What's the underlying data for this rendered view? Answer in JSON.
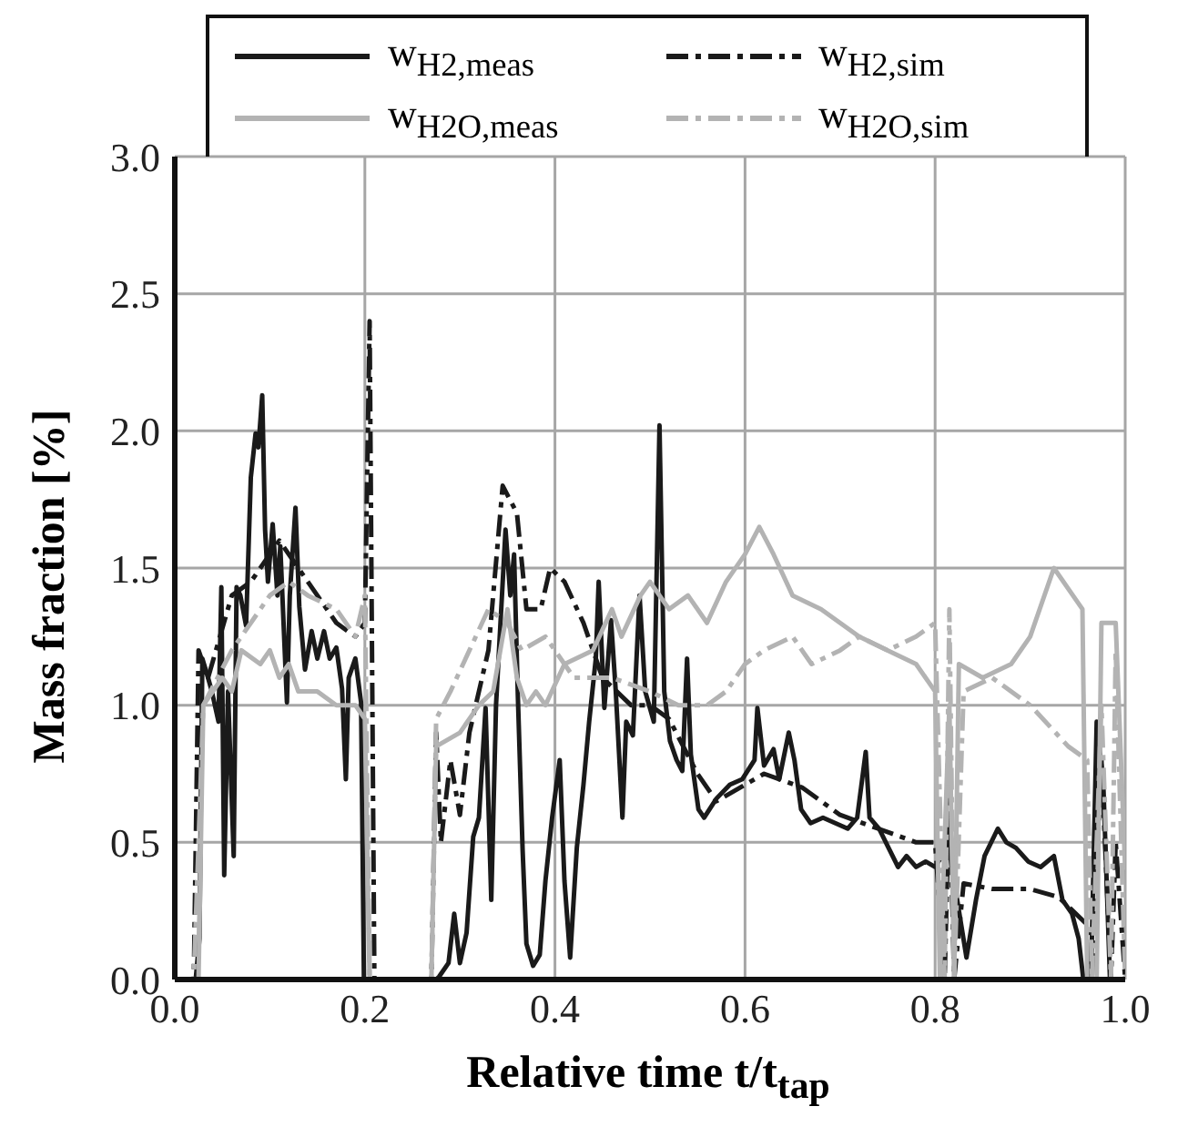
{
  "chart_data": {
    "type": "line",
    "xlabel": "Relative time t/t$_{tap}$",
    "ylabel": "Mass fraction [%]",
    "xlim": [
      0,
      1
    ],
    "ylim": [
      0,
      3
    ],
    "xticks": [
      {
        "value": 0,
        "label": "0.0"
      },
      {
        "value": 0.2,
        "label": "0.2"
      },
      {
        "value": 0.4,
        "label": "0.4"
      },
      {
        "value": 0.6,
        "label": "0.6"
      },
      {
        "value": 0.8,
        "label": "0.8"
      },
      {
        "value": 1,
        "label": "1.0"
      }
    ],
    "yticks": [
      {
        "value": 0,
        "label": "0.0"
      },
      {
        "value": 0.5,
        "label": "0.5"
      },
      {
        "value": 1,
        "label": "1.0"
      },
      {
        "value": 1.5,
        "label": "1.5"
      },
      {
        "value": 2,
        "label": "2.0"
      },
      {
        "value": 2.5,
        "label": "2.5"
      },
      {
        "value": 3,
        "label": "3.0"
      }
    ],
    "grid": true,
    "legend": "top",
    "marker": "none",
    "series": [
      {
        "name": "w$_{H2,meas}$",
        "color": "#1a1a1a",
        "line_style": "solid",
        "x": [
          0,
          0.022,
          0.026,
          0.029,
          0.035,
          0.039,
          0.046,
          0.049,
          0.052,
          0.056,
          0.062,
          0.065,
          0.069,
          0.075,
          0.08,
          0.085,
          0.088,
          0.092,
          0.095,
          0.098,
          0.103,
          0.108,
          0.111,
          0.118,
          0.121,
          0.127,
          0.131,
          0.137,
          0.144,
          0.15,
          0.157,
          0.163,
          0.17,
          0.176,
          0.18,
          0.183,
          0.19,
          0.196,
          0.199,
          0.275,
          0.278,
          0.288,
          0.294,
          0.3,
          0.307,
          0.314,
          0.32,
          0.327,
          0.333,
          0.338,
          0.348,
          0.353,
          0.357,
          0.361,
          0.366,
          0.37,
          0.377,
          0.384,
          0.39,
          0.397,
          0.405,
          0.41,
          0.416,
          0.423,
          0.43,
          0.436,
          0.443,
          0.446,
          0.452,
          0.459,
          0.464,
          0.471,
          0.475,
          0.482,
          0.489,
          0.495,
          0.504,
          0.51,
          0.515,
          0.521,
          0.528,
          0.534,
          0.539,
          0.543,
          0.551,
          0.557,
          0.57,
          0.584,
          0.597,
          0.61,
          0.613,
          0.62,
          0.63,
          0.636,
          0.646,
          0.652,
          0.659,
          0.669,
          0.682,
          0.695,
          0.708,
          0.718,
          0.727,
          0.731,
          0.741,
          0.751,
          0.761,
          0.77,
          0.78,
          0.79,
          0.8,
          0.807,
          0.813,
          0.82,
          0.833,
          0.843,
          0.852,
          0.866,
          0.875,
          0.885,
          0.898,
          0.911,
          0.925,
          0.934,
          0.944,
          0.951,
          0.956,
          0.964,
          0.97,
          0.977,
          0.984,
          1
        ],
        "values": [
          0,
          0,
          0.15,
          1.17,
          1.1,
          1.05,
          0.94,
          1.43,
          0.38,
          1.05,
          0.45,
          1.43,
          1.4,
          1.29,
          1.83,
          1.99,
          1.94,
          2.13,
          1.64,
          1.45,
          1.66,
          1.4,
          1.58,
          1.01,
          1.4,
          1.72,
          1.36,
          1.13,
          1.27,
          1.17,
          1.27,
          1.17,
          1.21,
          1.06,
          0.73,
          1.1,
          1.17,
          1.01,
          0,
          0,
          0.01,
          0.06,
          0.24,
          0.06,
          0.17,
          0.52,
          0.59,
          0.99,
          0.29,
          1,
          1.64,
          1.4,
          1.55,
          1.03,
          0.47,
          0.13,
          0.05,
          0.09,
          0.36,
          0.59,
          0.8,
          0.36,
          0.08,
          0.48,
          0.71,
          0.94,
          1.17,
          1.45,
          0.99,
          1.31,
          1.05,
          0.59,
          0.94,
          0.89,
          1.4,
          1.05,
          0.94,
          2.02,
          1.05,
          0.87,
          0.8,
          0.76,
          1.17,
          0.82,
          0.62,
          0.59,
          0.66,
          0.71,
          0.73,
          0.8,
          0.99,
          0.78,
          0.84,
          0.73,
          0.9,
          0.8,
          0.62,
          0.57,
          0.59,
          0.57,
          0.55,
          0.59,
          0.83,
          0.59,
          0.55,
          0.48,
          0.41,
          0.45,
          0.41,
          0.43,
          0.41,
          0.45,
          0.52,
          0.36,
          0.08,
          0.29,
          0.45,
          0.55,
          0.5,
          0.48,
          0.43,
          0.41,
          0.45,
          0.29,
          0.24,
          0.15,
          0,
          0,
          0.94,
          0.71,
          0,
          0
        ]
      },
      {
        "name": "w$_{H2,sim}$",
        "color": "#1a1a1a",
        "line_style": "dashdot",
        "x": [
          0,
          0.02,
          0.025,
          0.035,
          0.06,
          0.08,
          0.1,
          0.11,
          0.13,
          0.15,
          0.17,
          0.19,
          0.2,
          0.205,
          0.21,
          0.27,
          0.275,
          0.28,
          0.29,
          0.3,
          0.31,
          0.33,
          0.345,
          0.36,
          0.37,
          0.385,
          0.395,
          0.41,
          0.43,
          0.45,
          0.48,
          0.5,
          0.52,
          0.55,
          0.57,
          0.62,
          0.66,
          0.7,
          0.74,
          0.78,
          0.8,
          0.81,
          0.815,
          0.82,
          0.83,
          0.86,
          0.9,
          0.93,
          0.96,
          0.965,
          0.975,
          0.985,
          0.99,
          1
        ],
        "values": [
          0,
          0,
          1.2,
          1.1,
          1.4,
          1.45,
          1.55,
          1.6,
          1.5,
          1.4,
          1.3,
          1.25,
          1.3,
          2.4,
          0,
          0,
          0.9,
          0.5,
          0.8,
          0.6,
          0.9,
          1.2,
          1.8,
          1.7,
          1.35,
          1.35,
          1.5,
          1.45,
          1.3,
          1.1,
          1,
          1,
          0.95,
          0.75,
          0.65,
          0.75,
          0.7,
          0.6,
          0.55,
          0.5,
          0.5,
          0,
          0.7,
          0,
          0.35,
          0.33,
          0.33,
          0.3,
          0.2,
          0,
          0.8,
          0,
          0.5,
          0
        ]
      },
      {
        "name": "w$_{H2O,meas}$",
        "color": "#b3b3b3",
        "line_style": "solid",
        "x": [
          0,
          0.025,
          0.03,
          0.05,
          0.06,
          0.07,
          0.09,
          0.1,
          0.11,
          0.12,
          0.13,
          0.15,
          0.17,
          0.19,
          0.2,
          0.205,
          0.27,
          0.275,
          0.3,
          0.32,
          0.335,
          0.35,
          0.36,
          0.37,
          0.38,
          0.39,
          0.41,
          0.44,
          0.46,
          0.47,
          0.49,
          0.5,
          0.52,
          0.54,
          0.56,
          0.58,
          0.6,
          0.615,
          0.63,
          0.65,
          0.68,
          0.7,
          0.72,
          0.75,
          0.78,
          0.8,
          0.805,
          0.815,
          0.82,
          0.825,
          0.85,
          0.88,
          0.9,
          0.925,
          0.945,
          0.955,
          0.96,
          0.97,
          0.975,
          0.99,
          1
        ],
        "values": [
          0,
          0,
          1,
          1.1,
          1.05,
          1.2,
          1.15,
          1.2,
          1.1,
          1.15,
          1.05,
          1.05,
          1,
          1,
          0.95,
          0,
          0,
          0.85,
          0.9,
          1,
          1.05,
          1.35,
          1.1,
          1,
          1.05,
          1,
          1.15,
          1.2,
          1.35,
          1.25,
          1.4,
          1.45,
          1.35,
          1.4,
          1.3,
          1.45,
          1.55,
          1.65,
          1.55,
          1.4,
          1.35,
          1.3,
          1.25,
          1.2,
          1.15,
          1.05,
          0,
          1,
          0,
          1.15,
          1.1,
          1.15,
          1.25,
          1.5,
          1.4,
          1.35,
          0,
          0,
          1.3,
          1.3,
          0.4
        ]
      },
      {
        "name": "w$_{H2O,sim}$",
        "color": "#b3b3b3",
        "line_style": "dashdot",
        "x": [
          0,
          0.02,
          0.03,
          0.06,
          0.08,
          0.1,
          0.12,
          0.14,
          0.17,
          0.19,
          0.2,
          0.205,
          0.27,
          0.275,
          0.29,
          0.31,
          0.33,
          0.35,
          0.365,
          0.39,
          0.42,
          0.46,
          0.5,
          0.53,
          0.56,
          0.58,
          0.6,
          0.62,
          0.65,
          0.67,
          0.7,
          0.72,
          0.75,
          0.78,
          0.8,
          0.81,
          0.815,
          0.82,
          0.83,
          0.86,
          0.9,
          0.94,
          0.96,
          0.965,
          0.975,
          0.985,
          0.99,
          1
        ],
        "values": [
          0,
          0,
          1,
          1.2,
          1.3,
          1.4,
          1.45,
          1.4,
          1.35,
          1.25,
          1.4,
          0,
          0,
          0.95,
          1.05,
          1.2,
          1.35,
          1.3,
          1.2,
          1.25,
          1.1,
          1.1,
          1.05,
          1,
          1,
          1.05,
          1.15,
          1.2,
          1.25,
          1.15,
          1.2,
          1.25,
          1.2,
          1.25,
          1.3,
          0,
          1.35,
          0,
          1.05,
          1.1,
          1,
          0.85,
          0.8,
          0,
          1,
          0,
          1.2,
          0
        ]
      }
    ]
  }
}
